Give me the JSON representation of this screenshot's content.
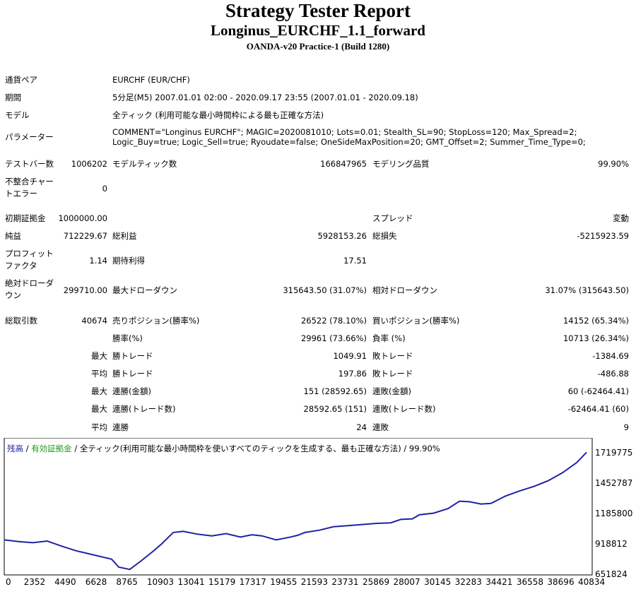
{
  "header": {
    "title": "Strategy Tester Report",
    "subtitle": "Longinus_EURCHF_1.1_forward",
    "server": "OANDA-v20 Practice-1 (Build 1280)"
  },
  "info": {
    "symbol_label": "通貨ペア",
    "symbol": "EURCHF (EUR/CHF)",
    "period_label": "期間",
    "period": "5分足(M5) 2007.01.01 02:00 - 2020.09.17 23:55 (2007.01.01 - 2020.09.18)",
    "model_label": "モデル",
    "model": "全ティック (利用可能な最小時間枠による最も正確な方法)",
    "params_label": "パラメーター",
    "params": "COMMENT=\"Longinus EURCHF\"; MAGIC=2020081010; Lots=0.01; Stealth_SL=90; StopLoss=120; Max_Spread=2; Logic_Buy=true; Logic_Sell=true; Ryoudate=false; OneSideMaxPosition=20; GMT_Offset=2; Summer_Time_Type=0;"
  },
  "stats": {
    "bars_label": "テストバー数",
    "bars": "1006202",
    "ticks_label": "モデルティック数",
    "ticks": "166847965",
    "quality_label": "モデリング品質",
    "quality": "99.90%",
    "mismatch_label": "不整合チャートエラー",
    "mismatch": "0",
    "deposit_label": "初期証拠金",
    "deposit": "1000000.00",
    "spread_label": "スプレッド",
    "spread": "変動",
    "net_label": "純益",
    "net": "712229.67",
    "gross_profit_label": "総利益",
    "gross_profit": "5928153.26",
    "gross_loss_label": "総損失",
    "gross_loss": "-5215923.59",
    "pf_label": "プロフィットファクタ",
    "pf": "1.14",
    "expected_label": "期待利得",
    "expected": "17.51",
    "abs_dd_label": "絶対ドローダウン",
    "abs_dd": "299710.00",
    "max_dd_label": "最大ドローダウン",
    "max_dd": "315643.50 (31.07%)",
    "rel_dd_label": "相対ドローダウン",
    "rel_dd": "31.07% (315643.50)",
    "total_trades_label": "総取引数",
    "total_trades": "40674",
    "short_label": "売りポジション(勝率%)",
    "short": "26522 (78.10%)",
    "long_label": "買いポジション(勝率%)",
    "long": "14152 (65.34%)",
    "win_rate_label": "勝率(%)",
    "win_rate": "29961 (73.66%)",
    "loss_rate_label": "負率 (%)",
    "loss_rate": "10713 (26.34%)",
    "max_word": "最大",
    "avg_word": "平均",
    "largest_win_label": "勝トレード",
    "largest_win": "1049.91",
    "largest_loss_label": "敗トレード",
    "largest_loss": "-1384.69",
    "avg_win_label": "勝トレード",
    "avg_win": "197.86",
    "avg_loss_label": "敗トレード",
    "avg_loss": "-486.88",
    "max_consec_wins_label": "連勝(金額)",
    "max_consec_wins": "151 (28592.65)",
    "max_consec_losses_label": "連敗(金額)",
    "max_consec_losses": "60 (-62464.41)",
    "max_consec_profit_label": "連勝(トレード数)",
    "max_consec_profit": "28592.65 (151)",
    "max_consec_loss_label": "連敗(トレード数)",
    "max_consec_loss": "-62464.41 (60)",
    "avg_consec_wins_label": "連勝",
    "avg_consec_wins": "24",
    "avg_consec_losses_label": "連敗",
    "avg_consec_losses": "9"
  },
  "chart_data": {
    "type": "line",
    "legend": {
      "balance": "残高",
      "sep": " / ",
      "equity": "有効証拠金",
      "rest": " / 全ティック(利用可能な最小時間枠を使いすべてのティックを生成する、最も正確な方法) / 99.90%"
    },
    "colors": {
      "balance": "#1f23a3",
      "equity": "#1a9a1a"
    },
    "x_ticks": [
      "0",
      "2352",
      "4490",
      "6628",
      "8765",
      "10903",
      "13041",
      "15179",
      "17317",
      "19455",
      "21593",
      "23731",
      "25869",
      "28007",
      "30145",
      "32283",
      "34421",
      "36558",
      "38696",
      "40834"
    ],
    "y_ticks": [
      "1719775",
      "1452787",
      "1185800",
      "918812",
      "651824"
    ],
    "ylim": [
      651824,
      1719775
    ],
    "xlim": [
      0,
      40674
    ],
    "series": [
      {
        "x": [
          0,
          1000,
          2000,
          3000,
          4000,
          5000,
          6000,
          7000,
          7500,
          8000,
          8765,
          9500,
          10400,
          11000,
          11800,
          12500,
          13500,
          14500,
          15500,
          16500,
          17300,
          18000,
          19000,
          20000,
          20500,
          21000,
          22000,
          23000,
          24000,
          25000,
          26000,
          27000,
          27700,
          28500,
          29000,
          30000,
          31000,
          31800,
          32500,
          33300,
          34000,
          35000,
          36000,
          37000,
          38000,
          39000,
          40000,
          40674
        ],
        "values": [
          960000,
          945000,
          935000,
          950000,
          905000,
          865000,
          835000,
          805000,
          790000,
          720000,
          700000,
          770000,
          860000,
          925000,
          1025000,
          1035000,
          1010000,
          995000,
          1015000,
          985000,
          1005000,
          995000,
          960000,
          985000,
          1000000,
          1025000,
          1045000,
          1075000,
          1085000,
          1095000,
          1105000,
          1110000,
          1140000,
          1145000,
          1180000,
          1195000,
          1235000,
          1300000,
          1295000,
          1275000,
          1280000,
          1345000,
          1390000,
          1430000,
          1480000,
          1550000,
          1640000,
          1730000
        ]
      }
    ]
  }
}
